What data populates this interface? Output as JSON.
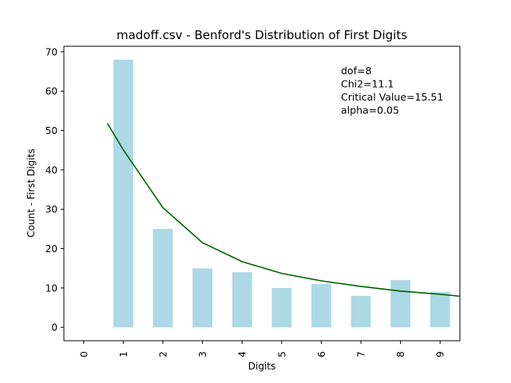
{
  "chart_data": {
    "type": "bar",
    "title": "madoff.csv - Benford's Distribution of First Digits",
    "xlabel": "Digits",
    "ylabel": "Count - First Digits",
    "categories": [
      "0",
      "1",
      "2",
      "3",
      "4",
      "5",
      "6",
      "7",
      "8",
      "9"
    ],
    "series": [
      {
        "kind": "bar",
        "color": "#add8e6",
        "values": [
          0,
          68,
          25,
          15,
          14,
          10,
          11,
          8,
          12,
          9
        ]
      },
      {
        "kind": "line",
        "color": "#006400",
        "x": [
          0.6,
          1,
          2,
          3,
          4,
          5,
          6,
          7,
          8,
          9,
          9.5
        ],
        "values": [
          51.8,
          45.1,
          30.4,
          21.5,
          16.7,
          13.7,
          11.8,
          10.4,
          9.2,
          8.4,
          7.9
        ]
      }
    ],
    "ylim": [
      -3.4,
      71.4
    ],
    "xlim": [
      -0.5,
      9.5
    ],
    "yticks": [
      0,
      10,
      20,
      30,
      40,
      50,
      60,
      70
    ],
    "grid": false,
    "annotation": [
      "dof=8",
      "Chi2=11.1",
      "Critical Value=15.51",
      "alpha=0.05"
    ]
  }
}
